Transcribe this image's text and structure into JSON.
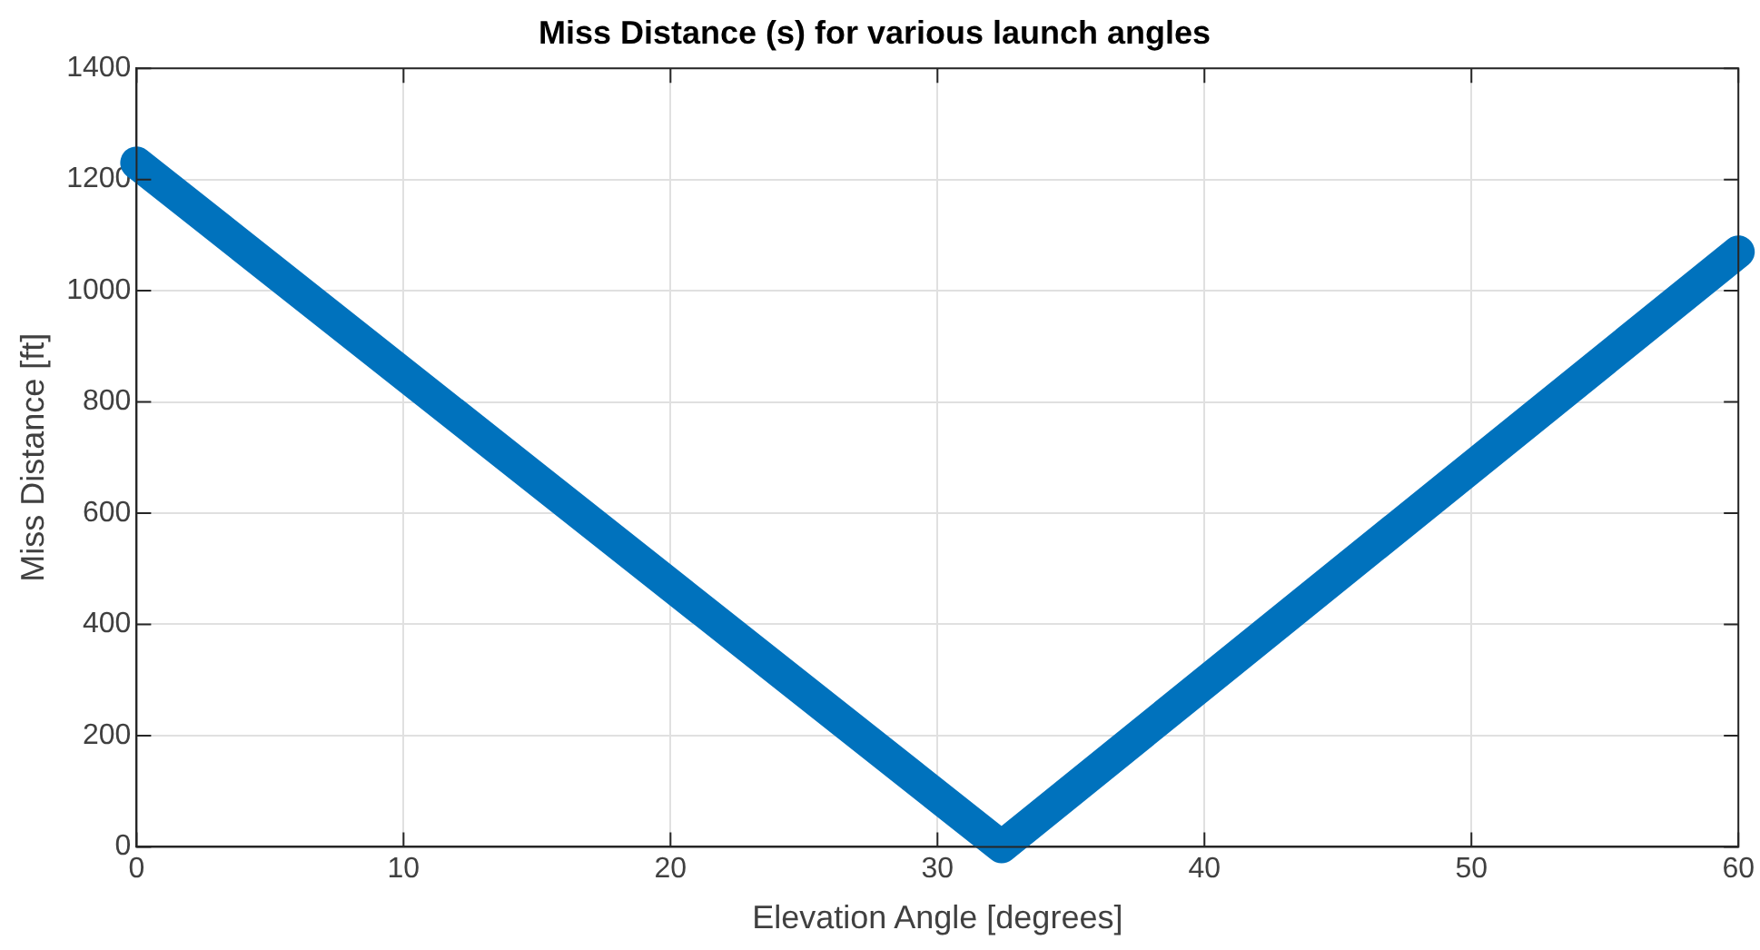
{
  "chart_data": {
    "type": "line",
    "title": "Miss Distance (s) for various launch angles",
    "xlabel": "Elevation Angle [degrees]",
    "ylabel": "Miss Distance [ft]",
    "x": [
      0,
      32.4,
      60
    ],
    "series": [
      {
        "color": "#0072bd",
        "values": [
          1230,
          0,
          1070
        ]
      }
    ],
    "xlim": [
      0,
      60
    ],
    "xticks": [
      0,
      10,
      20,
      30,
      40,
      50,
      60
    ],
    "ylim": [
      0,
      1400
    ],
    "yticks": [
      0,
      200,
      400,
      600,
      800,
      1000,
      1200,
      1400
    ],
    "grid": true,
    "legend": false,
    "marker": "none",
    "line_style": "solid"
  }
}
